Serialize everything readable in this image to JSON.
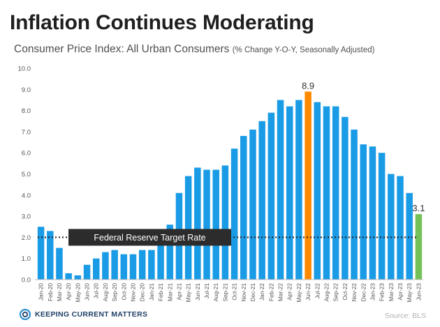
{
  "header": {
    "title": "Inflation Continues Moderating",
    "subtitle_main": "Consumer Price Index: All Urban Consumers",
    "subtitle_note": "(% Change Y-O-Y, Seasonally Adjusted)"
  },
  "footer": {
    "brand": "Keeping Current Matters",
    "source": "Source: BLS"
  },
  "colors": {
    "bar": "#1a9be6",
    "peak": "#ff8a00",
    "latest": "#74c15a",
    "label_box": "#2c2c2c",
    "dotted_line": "#222222"
  },
  "chart_data": {
    "type": "bar",
    "title": "",
    "xlabel": "",
    "ylabel": "",
    "ylim": [
      0,
      10
    ],
    "yticks": [
      "0.0",
      "1.0",
      "2.0",
      "3.0",
      "4.0",
      "5.0",
      "6.0",
      "7.0",
      "8.0",
      "9.0",
      "10.0"
    ],
    "grid": false,
    "categories": [
      "Jan-20",
      "Feb-20",
      "Mar-20",
      "Apr-20",
      "May-20",
      "Jun-20",
      "Jul-20",
      "Aug-20",
      "Sep-20",
      "Oct-20",
      "Nov-20",
      "Dec-20",
      "Jan-21",
      "Feb-21",
      "Mar-21",
      "Apr-21",
      "May-21",
      "Jun-21",
      "Jul-21",
      "Aug-21",
      "Sep-21",
      "Oct-21",
      "Nov-21",
      "Dec-21",
      "Jan-22",
      "Feb-22",
      "Mar-22",
      "Apr-22",
      "May-22",
      "Jun-22",
      "Jul-22",
      "Aug-22",
      "Sep-22",
      "Oct-22",
      "Nov-22",
      "Dec-22",
      "Jan-23",
      "Feb-23",
      "Mar-23",
      "Apr-23",
      "May-23",
      "Jun-23"
    ],
    "values": [
      2.5,
      2.3,
      1.5,
      0.3,
      0.2,
      0.7,
      1.0,
      1.3,
      1.4,
      1.2,
      1.2,
      1.4,
      1.4,
      1.7,
      2.6,
      4.1,
      4.9,
      5.3,
      5.2,
      5.2,
      5.4,
      6.2,
      6.8,
      7.1,
      7.5,
      7.9,
      8.5,
      8.2,
      8.5,
      8.9,
      8.4,
      8.2,
      8.2,
      7.7,
      7.1,
      6.4,
      6.3,
      6.0,
      5.0,
      4.9,
      4.1,
      3.1
    ],
    "highlights": [
      {
        "index": 29,
        "label": "8.9",
        "color": "#ff8a00"
      },
      {
        "index": 41,
        "label": "3.1",
        "color": "#74c15a"
      }
    ],
    "reference_line": {
      "value": 2.0,
      "label": "Federal Reserve Target Rate",
      "style": "dotted"
    }
  }
}
